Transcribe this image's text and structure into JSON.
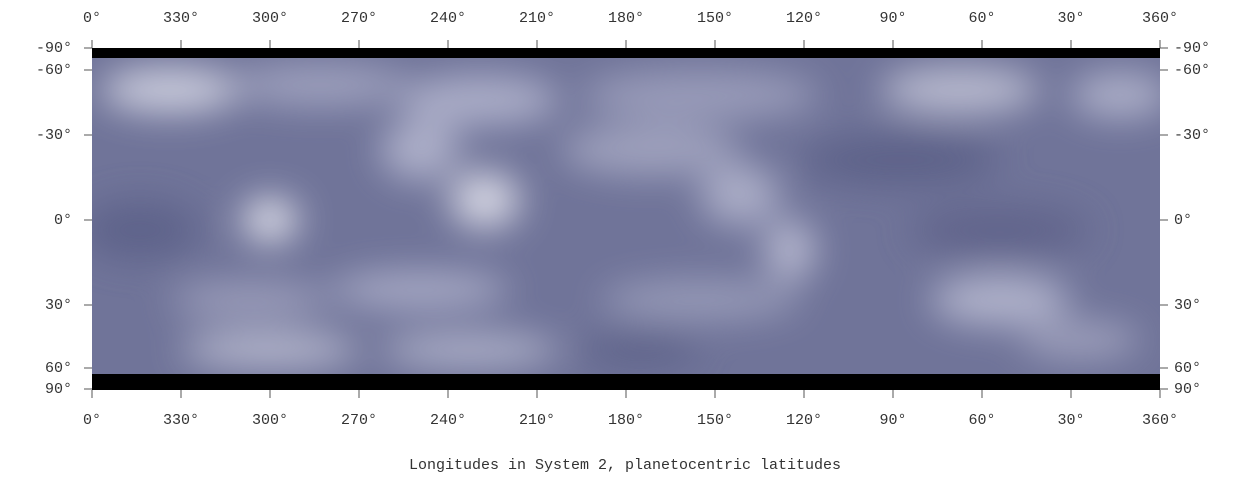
{
  "top_axis": {
    "labels": [
      "0°",
      "330°",
      "300°",
      "270°",
      "240°",
      "210°",
      "180°",
      "150°",
      "120°",
      "90°",
      "60°",
      "30°",
      "360°"
    ]
  },
  "bottom_axis": {
    "labels": [
      "0°",
      "330°",
      "300°",
      "270°",
      "240°",
      "210°",
      "180°",
      "150°",
      "120°",
      "90°",
      "60°",
      "30°",
      "360°"
    ]
  },
  "left_axis": {
    "labels": [
      "-90°",
      "-60°",
      "-30°",
      "0°",
      "30°",
      "60°",
      "90°"
    ]
  },
  "right_axis": {
    "labels": [
      "-90°",
      "-60°",
      "-30°",
      "0°",
      "30°",
      "60°",
      "90°"
    ]
  },
  "caption": "Longitudes in System 2, planetocentric latitudes"
}
